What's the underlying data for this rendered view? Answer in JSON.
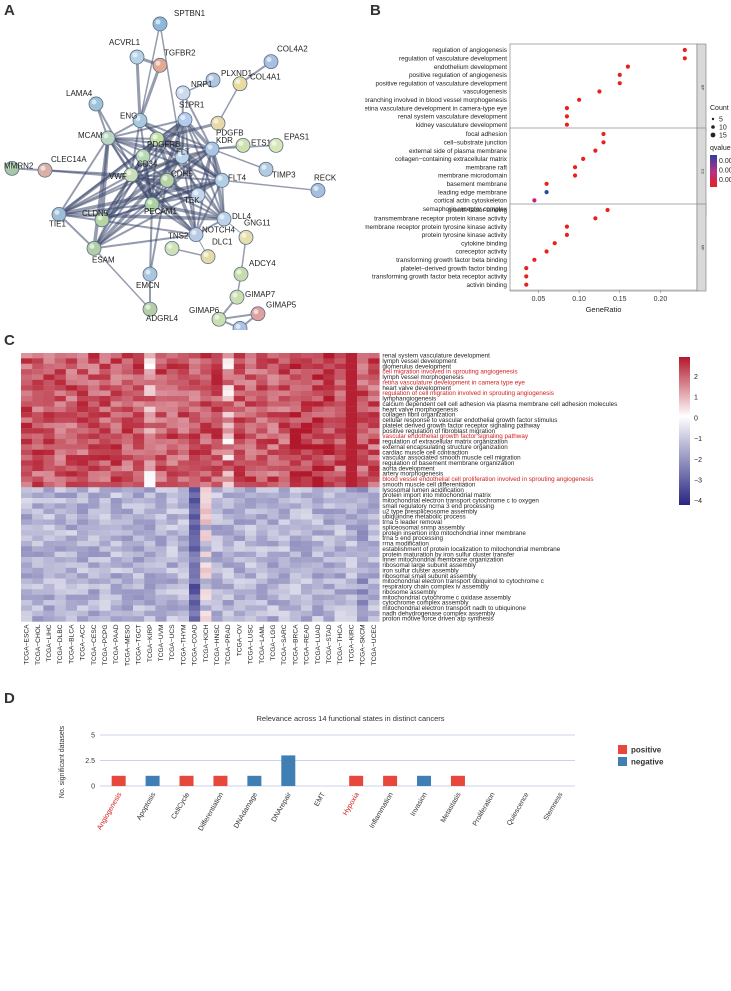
{
  "panels": {
    "a": "A",
    "b": "B",
    "c": "C",
    "d": "D"
  },
  "network": {
    "nodes": [
      {
        "id": "SPTBN1",
        "color": "#8fb8d8"
      },
      {
        "id": "ACVRL1",
        "color": "#b8d3e8"
      },
      {
        "id": "TGFBR2",
        "color": "#e3a892"
      },
      {
        "id": "PLXND1",
        "color": "#b0c6e0"
      },
      {
        "id": "NRP1",
        "color": "#cfd9ee"
      },
      {
        "id": "COL4A2",
        "color": "#a7c0e2"
      },
      {
        "id": "COL4A1",
        "color": "#e8dca0"
      },
      {
        "id": "LAMA4",
        "color": "#9ec2d8"
      },
      {
        "id": "ENG",
        "color": "#a8c9df"
      },
      {
        "id": "S1PR1",
        "color": "#b5ccef"
      },
      {
        "id": "PDGFB",
        "color": "#e7d9a8"
      },
      {
        "id": "MCAM",
        "color": "#b9d7c1"
      },
      {
        "id": "PDGFRB",
        "color": "#c5dfa8"
      },
      {
        "id": "ETS1",
        "color": "#cfe1ad"
      },
      {
        "id": "EPAS1",
        "color": "#d8e7b8"
      },
      {
        "id": "CD34",
        "color": "#b8d9b5"
      },
      {
        "id": "FLT",
        "color": "#bcd4ea"
      },
      {
        "id": "KDR",
        "color": "#aac5e6"
      },
      {
        "id": "TIMP3",
        "color": "#b1cbe0"
      },
      {
        "id": "MMRN2",
        "color": "#a6c8a7"
      },
      {
        "id": "CLEC14A",
        "color": "#d9b0a6"
      },
      {
        "id": "VWF",
        "color": "#cadfb7"
      },
      {
        "id": "CDH5",
        "color": "#b7d4a5"
      },
      {
        "id": "FLT4",
        "color": "#b3cfe6"
      },
      {
        "id": "RECK",
        "color": "#a7bfde"
      },
      {
        "id": "TEK",
        "color": "#c3d6ec"
      },
      {
        "id": "DLL4",
        "color": "#bcd2ea"
      },
      {
        "id": "PECAM1",
        "color": "#acd0a0"
      },
      {
        "id": "NOTCH4",
        "color": "#b8cbe6"
      },
      {
        "id": "GNG11",
        "color": "#e6dfae"
      },
      {
        "id": "TIE1",
        "color": "#9ebed8"
      },
      {
        "id": "CLDN5",
        "color": "#b5d4a6"
      },
      {
        "id": "TNS2",
        "color": "#cfe2b7"
      },
      {
        "id": "DLC1",
        "color": "#e3dba8"
      },
      {
        "id": "ESAM",
        "color": "#b0cfa5"
      },
      {
        "id": "ADCY4",
        "color": "#c7dcaa"
      },
      {
        "id": "GIMAP7",
        "color": "#cbdfae"
      },
      {
        "id": "EMCN",
        "color": "#aac6de"
      },
      {
        "id": "GIMAP6",
        "color": "#cbe0b0"
      },
      {
        "id": "GIMAP5",
        "color": "#e0a0a0"
      },
      {
        "id": "ADGRL4",
        "color": "#b4cfa8"
      },
      {
        "id": "GIMAP8",
        "color": "#aac3e4"
      }
    ]
  },
  "dotplot": {
    "bp_terms": [
      "regulation of angiogenesis",
      "regulation of vasculature development",
      "endothelium development",
      "positive regulation of angiogenesis",
      "positive regulation of vasculature development",
      "vasculogenesis",
      "branching involved in blood vessel morphogenesis",
      "retina vasculature development in camera-type eye",
      "renal system vasculature development",
      "kidney vasculature development"
    ],
    "bp_ratio": [
      0.23,
      0.23,
      0.16,
      0.15,
      0.15,
      0.125,
      0.1,
      0.085,
      0.085,
      0.085
    ],
    "cc_terms": [
      "focal adhesion",
      "cell−substrate junction",
      "external side of plasma membrane",
      "collagen−containing extracellular matrix",
      "membrane raft",
      "membrane microdomain",
      "basement membrane",
      "leading edge membrane",
      "cortical actin cytoskeleton",
      "semaphorin receptor complex"
    ],
    "cc_ratio": [
      0.13,
      0.13,
      0.12,
      0.105,
      0.095,
      0.095,
      0.06,
      0.06,
      0.045,
      0.025
    ],
    "mf_terms": [
      "growth factor binding",
      "transmembrane receptor protein kinase activity",
      "transmembrane receptor protein tyrosine kinase activity",
      "protein tyrosine kinase activity",
      "cytokine binding",
      "coreceptor activity",
      "transforming growth factor beta binding",
      "platelet−derived growth factor binding",
      "transforming growth factor beta receptor activity",
      "activin binding"
    ],
    "mf_ratio": [
      0.135,
      0.12,
      0.085,
      0.085,
      0.07,
      0.06,
      0.045,
      0.035,
      0.035,
      0.035
    ],
    "facet_labels": [
      "BP",
      "CC",
      "MF"
    ],
    "xticks": [
      "0.05",
      "0.10",
      "0.15",
      "0.20"
    ],
    "xlabel": "GeneRatio",
    "count_title": "Count",
    "count_labels": [
      "5",
      "10",
      "15"
    ],
    "qvalue_title": "qvalue",
    "qvalue_labels": [
      "0.0075",
      "0.0050",
      "0.0025"
    ]
  },
  "heatmap": {
    "cancers": [
      "TCGA−ESCA",
      "TCGA−CHOL",
      "TCGA−LIHC",
      "TCGA−DLBC",
      "TCGA−BLCA",
      "TCGA−ACC",
      "TCGA−CESC",
      "TCGA−PCPG",
      "TCGA−PAAD",
      "TCGA−MESO",
      "TCGA−TGCT",
      "TCGA−KIRP",
      "TCGA−UVM",
      "TCGA−UCS",
      "TCGA−THYM",
      "TCGA−COAD",
      "TCGA−KICH",
      "TCGA−HNSC",
      "TCGA−PRAD",
      "TCGA−OV",
      "TCGA−LUSC",
      "TCGA−LAML",
      "TCGA−LGG",
      "TCGA−SARC",
      "TCGA−BRCA",
      "TCGA−READ",
      "TCGA−LUAD",
      "TCGA−STAD",
      "TCGA−THCA",
      "TCGA−KIRC",
      "TCGA−SKCM",
      "TCGA−UCEC"
    ],
    "rows": [
      {
        "label": "renal system vasculature development",
        "red": false
      },
      {
        "label": "lymph vessel development",
        "red": false
      },
      {
        "label": "glomerulus development",
        "red": false
      },
      {
        "label": "cell migration involved in sprouting angiogenesis",
        "red": true
      },
      {
        "label": "lymph vessel morphogenesis",
        "red": false
      },
      {
        "label": "retina vasculature development in camera type eye",
        "red": true
      },
      {
        "label": "heart valve development",
        "red": false
      },
      {
        "label": "regulation of cell migration involved in sprouting angiogenesis",
        "red": true
      },
      {
        "label": "lymphangiogenesis",
        "red": false
      },
      {
        "label": "calcium dependent cell cell adhesion via plasma membrane cell adhesion molecules",
        "red": false
      },
      {
        "label": "heart valve morphogenesis",
        "red": false
      },
      {
        "label": "collagen fibril organization",
        "red": false
      },
      {
        "label": "cellular response to vascular endothelial growth factor stimulus",
        "red": false
      },
      {
        "label": "platelet derived growth factor receptor signaling pathway",
        "red": false
      },
      {
        "label": "positive regulation of fibroblast migration",
        "red": false
      },
      {
        "label": "vascular endothelial growth factor signaling pathway",
        "red": true
      },
      {
        "label": "regulation of extracellular matrix organization",
        "red": false
      },
      {
        "label": "external encapsulating structure organization",
        "red": false
      },
      {
        "label": "cardiac muscle cell contraction",
        "red": false
      },
      {
        "label": "vascular associated smooth muscle cell migration",
        "red": false
      },
      {
        "label": "regulation of basement membrane organization",
        "red": false
      },
      {
        "label": "aorta development",
        "red": false
      },
      {
        "label": "artery morphogenesis",
        "red": false
      },
      {
        "label": "blood vessel endothelial cell proliferation involved in sprouting angiogenesis",
        "red": true
      },
      {
        "label": "smooth muscle cell differentiation",
        "red": false
      },
      {
        "label": "lysosomal lumen acidification",
        "red": false
      },
      {
        "label": "protein import into mitochondrial matrix",
        "red": false
      },
      {
        "label": "mitochondrial electron transport cytochrome c to oxygen",
        "red": false
      },
      {
        "label": "small regulatory ncrna 3 end processing",
        "red": false
      },
      {
        "label": "u2 type prespliceosome assembly",
        "red": false
      },
      {
        "label": "ubiquinone metabolic process",
        "red": false
      },
      {
        "label": "trna 5 leader removal",
        "red": false
      },
      {
        "label": "spliceosomal snrnp assembly",
        "red": false
      },
      {
        "label": "protein insertion into mitochondrial inner membrane",
        "red": false
      },
      {
        "label": "trna 5 end processing",
        "red": false
      },
      {
        "label": "rrna modification",
        "red": false
      },
      {
        "label": "establishment of protein localization to mitochondrial membrane",
        "red": false
      },
      {
        "label": "protein maturation by iron sulfur cluster transfer",
        "red": false
      },
      {
        "label": "inner mitochondrial membrane organization",
        "red": false
      },
      {
        "label": "ribosomal large subunit assembly",
        "red": false
      },
      {
        "label": "iron sulfur cluster assembly",
        "red": false
      },
      {
        "label": "ribosomal small subunit assembly",
        "red": false
      },
      {
        "label": "mitochondrial electron transport ubiquinol to cytochrome c",
        "red": false
      },
      {
        "label": "respiratory chain complex iv assembly",
        "red": false
      },
      {
        "label": "ribosome assembly",
        "red": false
      },
      {
        "label": "mitochondrial cytochrome c oxidase assembly",
        "red": false
      },
      {
        "label": "cytochrome complex assembly",
        "red": false
      },
      {
        "label": "mitochondrial electron transport nadh to ubiquinone",
        "red": false
      },
      {
        "label": "nadh dehydrogenase complex assembly",
        "red": false
      },
      {
        "label": "proton motive force driven atp synthesis",
        "red": false
      }
    ],
    "scale_labels": [
      "2",
      "1",
      "0",
      "−1",
      "−2",
      "−3",
      "−4"
    ]
  },
  "chart_data": {
    "type": "bar",
    "title": "Relevance across 14 functional states in distinct cancers",
    "ylabel": "No. significant datasets",
    "ylim": [
      0,
      5
    ],
    "yticks": [
      "0",
      "2.5",
      "5"
    ],
    "categories": [
      "Angiogenesis",
      "Apoptosis",
      "CellCycle",
      "Differentiation",
      "DNAdamage",
      "DNArepair",
      "EMT",
      "Hypoxia",
      "Inflammation",
      "Invasion",
      "Metastasis",
      "Proliferation",
      "Quiescence",
      "Stemness"
    ],
    "highlighted": [
      "Angiogenesis",
      "Hypoxia"
    ],
    "series": [
      {
        "name": "positive",
        "color": "#e8473b",
        "values": [
          1,
          0,
          1,
          1,
          0,
          0,
          0,
          1,
          1,
          0,
          1,
          0,
          0,
          0
        ]
      },
      {
        "name": "negative",
        "color": "#3f7fb4",
        "values": [
          0,
          1,
          0,
          0,
          1,
          3,
          0,
          0,
          0,
          1,
          0,
          0,
          0,
          0
        ]
      }
    ]
  }
}
